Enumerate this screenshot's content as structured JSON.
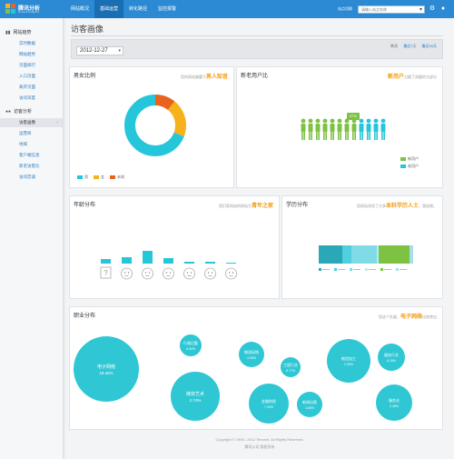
{
  "header": {
    "logo_title": "腾讯分析",
    "logo_subtitle": "Tencent Analytics",
    "nav": [
      {
        "label": "网站概况",
        "active": false
      },
      {
        "label": "基础运营",
        "active": true
      },
      {
        "label": "转化路径",
        "active": false
      },
      {
        "label": "监控报警",
        "active": false
      }
    ],
    "site_label": "站点切换",
    "site_value": "",
    "site_placeholder": "请输入站点名称",
    "icons": [
      "gear-icon",
      "user-icon"
    ]
  },
  "sidebar": {
    "groups": [
      {
        "label": "网站趋势",
        "icon": "chart-icon",
        "items": [
          "实时数据",
          "网站趋势",
          "页面排行",
          "入口页面",
          "离开页面",
          "访问深度"
        ]
      },
      {
        "label": "访客分析",
        "icon": "users-icon",
        "items": [
          "访客画像",
          "运营商",
          "地域",
          "客户端信息",
          "新老访客比",
          "访问忠诚"
        ],
        "active_item": "访客画像"
      }
    ]
  },
  "page": {
    "title": "访客画像",
    "date": "2012-12-27",
    "range_links": [
      "昨天",
      "最近7天",
      "最近30天"
    ]
  },
  "gender": {
    "title": "男女比例",
    "note_prefix": "您的网站偏重于",
    "note_highlight": "男人知音",
    "legend": [
      "男",
      "女",
      "未知"
    ]
  },
  "newold": {
    "title": "新老用户比",
    "note_prefix": "",
    "note_highlight": "新用户",
    "note_suffix": "占据了流量的大部分",
    "badge": "67%",
    "legend": [
      "新用户",
      "老用户"
    ]
  },
  "age": {
    "title": "年龄分布",
    "note_prefix": "您们家网站的网站为",
    "note_highlight": "青年之家"
  },
  "education": {
    "title": "学历分布",
    "note_prefix": "您网站浏览了大多",
    "note_highlight": "本科学历人士",
    "note_suffix": "，我说就。"
  },
  "occupation": {
    "title": "职业分布",
    "note_prefix": "您这个社度，",
    "note_highlight": "电子网络",
    "note_suffix": "比较突出",
    "bubbles": [
      {
        "label": "电子网络",
        "pct": "18.45%"
      },
      {
        "label": "行政后勤",
        "pct": "6.02%"
      },
      {
        "label": "媒体艺术",
        "pct": "2.74%"
      },
      {
        "label": "物流采购",
        "pct": "4.06%"
      },
      {
        "label": "金融财经",
        "pct": "7.34%"
      },
      {
        "label": "工程行业",
        "pct": "5.77%"
      },
      {
        "label": "新闻出版",
        "pct": "4.65%"
      },
      {
        "label": "制造加工",
        "pct": "2.30%"
      },
      {
        "label": "服务行业",
        "pct": "6.15%"
      },
      {
        "label": "服务业",
        "pct": "2.45%"
      }
    ]
  },
  "footer": {
    "copyright": "Copyright © 1998 - 2012 Tencent. All Rights Reserved.",
    "company": "腾讯公司 版权所有"
  },
  "colors": {
    "header": "#2b8ad3",
    "male": "#26c6da",
    "female": "#f5b21b",
    "unknown": "#e8631d",
    "newuser": "#7dc242",
    "olduser": "#26c6da",
    "bubble": "#2fc7d4",
    "highlight": "#f39c12"
  }
}
